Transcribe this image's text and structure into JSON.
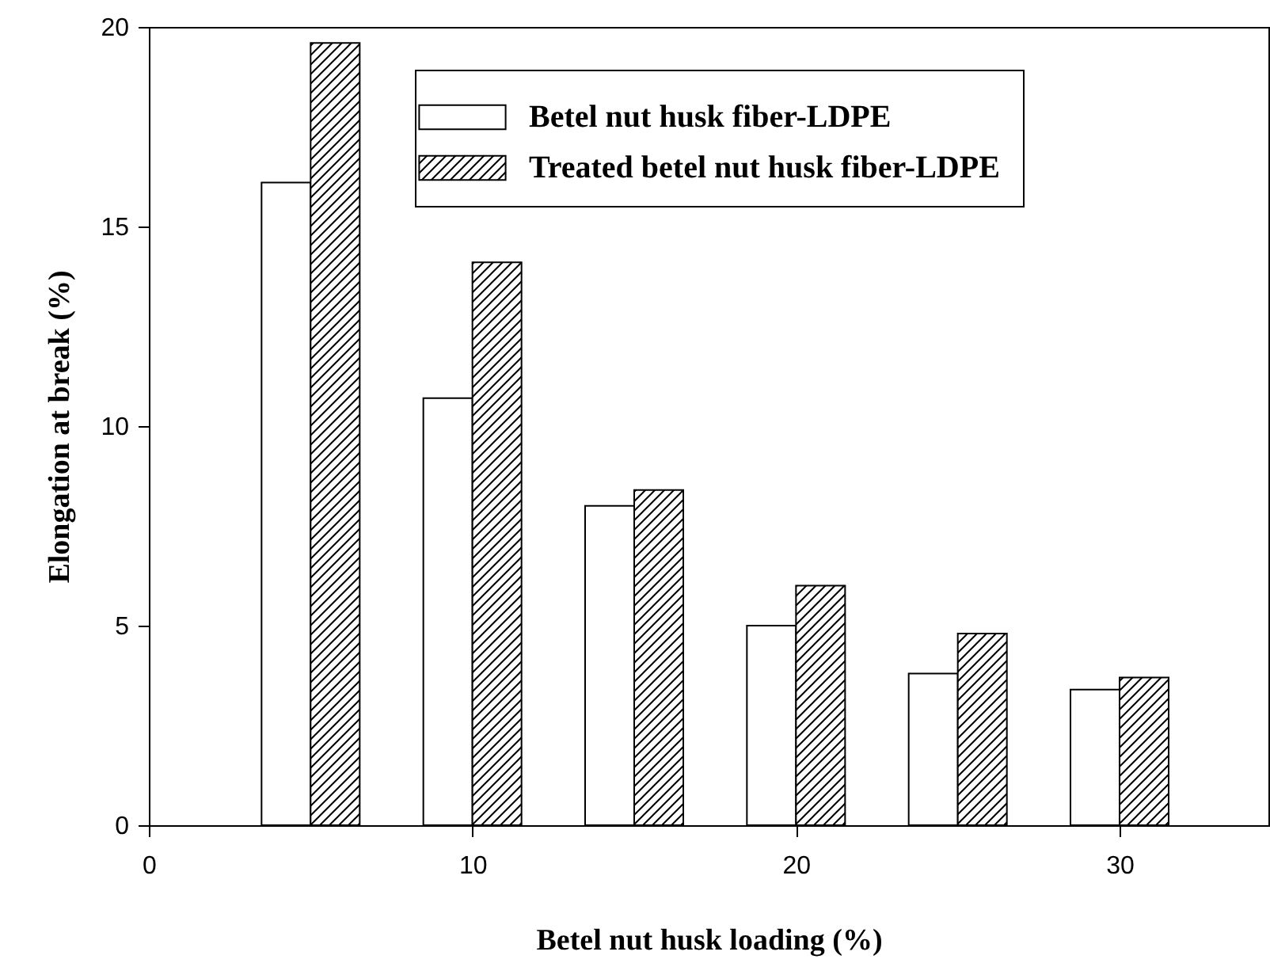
{
  "chart_data": {
    "type": "bar",
    "xlabel": "Betel nut husk loading (%)",
    "ylabel": "Elongation at break (%)",
    "x": [
      5,
      10,
      15,
      20,
      25,
      30
    ],
    "series": [
      {
        "name": "Betel nut husk fiber-LDPE",
        "color": "#ffffff",
        "values": [
          16.1,
          10.7,
          8.0,
          5.0,
          3.8,
          3.4
        ]
      },
      {
        "name": "Treated betel nut husk fiber-LDPE",
        "color": "#000000",
        "values": [
          19.6,
          14.1,
          8.4,
          6.0,
          4.8,
          3.7
        ]
      }
    ],
    "xlim": [
      0,
      34.6
    ],
    "ylim": [
      0,
      20
    ],
    "xticks": [
      0,
      10,
      20,
      30
    ],
    "yticks": [
      0,
      5,
      10,
      15,
      20
    ],
    "grid": false,
    "legend": "top right"
  }
}
